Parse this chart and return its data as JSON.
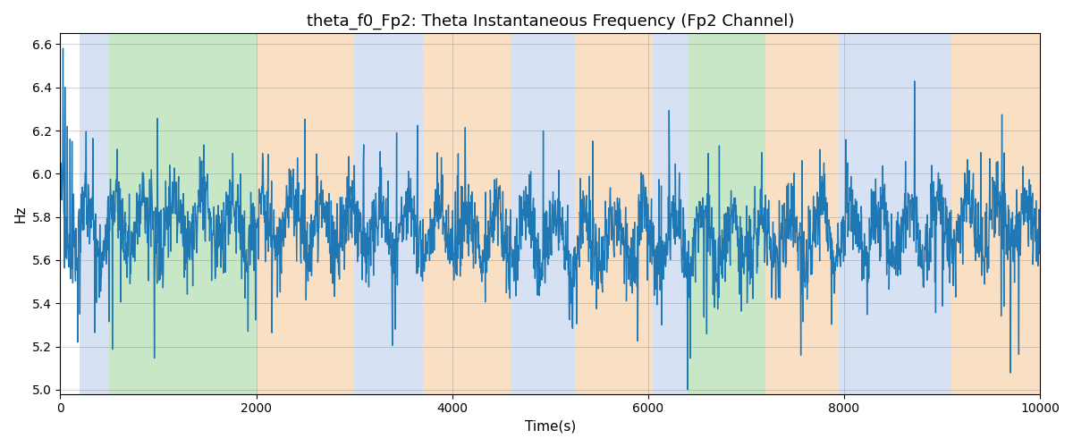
{
  "title": "theta_f0_Fp2: Theta Instantaneous Frequency (Fp2 Channel)",
  "xlabel": "Time(s)",
  "ylabel": "Hz",
  "xlim": [
    0,
    10000
  ],
  "ylim": [
    4.98,
    6.65
  ],
  "yticks": [
    5.0,
    5.2,
    5.4,
    5.6,
    5.8,
    6.0,
    6.2,
    6.4,
    6.6
  ],
  "xticks": [
    0,
    2000,
    4000,
    6000,
    8000,
    10000
  ],
  "line_color": "#1f77b4",
  "line_width": 1.0,
  "seed": 42,
  "n_points": 2500,
  "spans": [
    {
      "xmin": 200,
      "xmax": 500,
      "color": "#aec6e8",
      "alpha": 0.5
    },
    {
      "xmin": 500,
      "xmax": 2000,
      "color": "#90d090",
      "alpha": 0.5
    },
    {
      "xmin": 2000,
      "xmax": 3000,
      "color": "#f5c08a",
      "alpha": 0.5
    },
    {
      "xmin": 3000,
      "xmax": 3700,
      "color": "#aec6e8",
      "alpha": 0.5
    },
    {
      "xmin": 3700,
      "xmax": 4600,
      "color": "#f5c08a",
      "alpha": 0.5
    },
    {
      "xmin": 4600,
      "xmax": 5250,
      "color": "#aec6e8",
      "alpha": 0.5
    },
    {
      "xmin": 5250,
      "xmax": 6050,
      "color": "#f5c08a",
      "alpha": 0.5
    },
    {
      "xmin": 6050,
      "xmax": 6400,
      "color": "#aec6e8",
      "alpha": 0.5
    },
    {
      "xmin": 6400,
      "xmax": 7200,
      "color": "#90d090",
      "alpha": 0.5
    },
    {
      "xmin": 7200,
      "xmax": 7950,
      "color": "#f5c08a",
      "alpha": 0.5
    },
    {
      "xmin": 7950,
      "xmax": 9100,
      "color": "#aec6e8",
      "alpha": 0.5
    },
    {
      "xmin": 9100,
      "xmax": 10000,
      "color": "#f5c08a",
      "alpha": 0.5
    }
  ],
  "background_color": "white",
  "grid_color": "gray",
  "grid_alpha": 0.5,
  "grid_linewidth": 0.5
}
